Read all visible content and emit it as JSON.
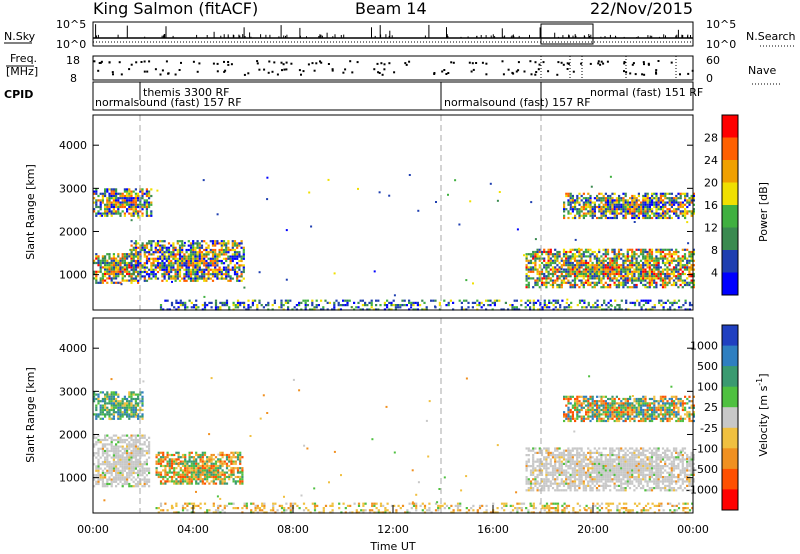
{
  "header": {
    "station": "King Salmon (fitACF)",
    "beam": "Beam 14",
    "date": "22/Nov/2015"
  },
  "status_panels": {
    "nsky_label": "N.Sky",
    "nsearch_label": "N.Search",
    "noise_ticks": [
      "10^5",
      "10^0"
    ],
    "freq_label_1": "Freq.",
    "freq_label_2": "[MHz]",
    "freq_ticks": [
      "18",
      "8"
    ],
    "nave_label": "Nave",
    "nave_ticks": [
      "60",
      "0"
    ],
    "cpid_label": "CPID"
  },
  "cpid_programs": [
    {
      "text": "themis 3300 RF",
      "start": 2.0,
      "end": 2.0
    },
    {
      "text": "normalsound (fast) 157 RF",
      "start": 0.0,
      "end": 14.0
    },
    {
      "text": "normalsound (fast) 157 RF",
      "start": 14.0,
      "end": 18.0
    },
    {
      "text": "normal (fast) 151 RF",
      "start": 18.0,
      "end": 24.0
    }
  ],
  "chart_data": [
    {
      "type": "heatmap",
      "name": "power",
      "ylabel": "Slant Range [km]",
      "xlabel": "",
      "xlim": [
        0,
        24
      ],
      "ylim": [
        180,
        4700
      ],
      "yticks": [
        "1000",
        "2000",
        "3000",
        "4000"
      ],
      "colorbar_label": "Power [dB]",
      "colorbar_ticks": [
        "4",
        "8",
        "12",
        "16",
        "20",
        "24",
        "28"
      ],
      "colorbar_colors": [
        "#0000ff",
        "#1f3fb0",
        "#3a8a50",
        "#40b040",
        "#f0e000",
        "#f0a000",
        "#ff6000",
        "#ff0000"
      ],
      "regions": [
        {
          "t0": 0.0,
          "t1": 1.8,
          "r0": 800,
          "r1": 1500,
          "level": "high"
        },
        {
          "t0": 0.0,
          "t1": 2.3,
          "r0": 2350,
          "r1": 3000,
          "level": "mid"
        },
        {
          "t0": 1.5,
          "t1": 6.0,
          "r0": 850,
          "r1": 1800,
          "level": "mid"
        },
        {
          "t0": 2.5,
          "t1": 6.0,
          "r0": 200,
          "r1": 420,
          "level": "low"
        },
        {
          "t0": 6.0,
          "t1": 17.5,
          "r0": 180,
          "r1": 420,
          "level": "low"
        },
        {
          "t0": 17.3,
          "t1": 24.0,
          "r0": 700,
          "r1": 1600,
          "level": "high"
        },
        {
          "t0": 18.8,
          "t1": 24.0,
          "r0": 2300,
          "r1": 2900,
          "level": "mid"
        },
        {
          "t0": 17.5,
          "t1": 24.0,
          "r0": 180,
          "r1": 420,
          "level": "low"
        }
      ]
    },
    {
      "type": "heatmap",
      "name": "velocity",
      "ylabel": "Slant Range [km]",
      "xlabel": "Time UT",
      "xlim": [
        0,
        24
      ],
      "ylim": [
        180,
        4700
      ],
      "yticks": [
        "1000",
        "2000",
        "3000",
        "4000"
      ],
      "xticks": [
        "00:00",
        "04:00",
        "08:00",
        "12:00",
        "16:00",
        "20:00",
        "00:00"
      ],
      "colorbar_label": "Velocity [m s^-1]",
      "colorbar_ticks": [
        "1000",
        "500",
        "100",
        "25",
        "-25",
        "-100",
        "-500",
        "-1000"
      ],
      "colorbar_colors": [
        "#2040c0",
        "#2f7fc0",
        "#3a9a70",
        "#4fc040",
        "#c8c8c8",
        "#f0c040",
        "#f09020",
        "#ff5000",
        "#ff0000"
      ],
      "regions": [
        {
          "t0": 0.0,
          "t1": 2.2,
          "r0": 800,
          "r1": 2000,
          "level": "ground"
        },
        {
          "t0": 0.0,
          "t1": 2.0,
          "r0": 2350,
          "r1": 3000,
          "level": "toward"
        },
        {
          "t0": 2.5,
          "t1": 6.0,
          "r0": 850,
          "r1": 1600,
          "level": "away"
        },
        {
          "t0": 2.5,
          "t1": 17.5,
          "r0": 180,
          "r1": 420,
          "level": "away_low"
        },
        {
          "t0": 17.3,
          "t1": 24.0,
          "r0": 700,
          "r1": 1700,
          "level": "ground"
        },
        {
          "t0": 18.8,
          "t1": 24.0,
          "r0": 2300,
          "r1": 2900,
          "level": "mixed"
        },
        {
          "t0": 17.5,
          "t1": 24.0,
          "r0": 180,
          "r1": 420,
          "level": "away_low"
        }
      ]
    }
  ]
}
